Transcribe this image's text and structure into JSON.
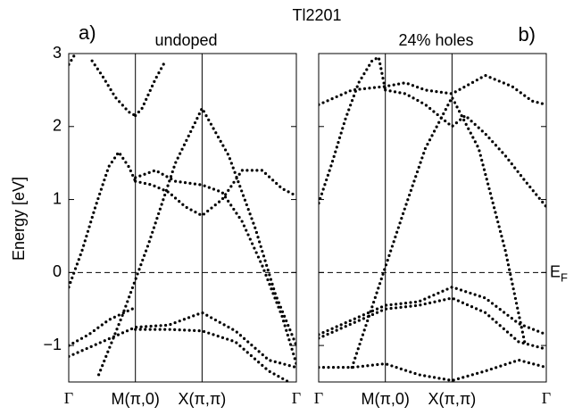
{
  "title": "Tl2201",
  "chart_data": [
    {
      "type": "line",
      "label": "a)",
      "title": "undoped",
      "ylabel": "Energy [eV]",
      "color": "#000000",
      "xlim": [
        0,
        3.414
      ],
      "ylim": [
        -1.5,
        3
      ],
      "xticks": [
        {
          "value": 0,
          "label": "Γ"
        },
        {
          "value": 1,
          "label": "M(π,0)"
        },
        {
          "value": 2,
          "label": "X(π,π)"
        },
        {
          "value": 3.414,
          "label": "Γ"
        }
      ],
      "yticks": [
        {
          "value": -1,
          "label": "−1"
        },
        0,
        1,
        2,
        3
      ],
      "ytick_labels": true,
      "xgrid": true,
      "fermi_level": 0,
      "series": [
        {
          "x": [
            0,
            0.2,
            0.4,
            0.6,
            0.75,
            0.9,
            1.0
          ],
          "values": [
            -0.2,
            0.3,
            0.9,
            1.45,
            1.65,
            1.45,
            1.25
          ]
        },
        {
          "x": [
            0,
            0.1
          ],
          "values": [
            2.85,
            3.0
          ]
        },
        {
          "x": [
            0.35,
            0.5,
            0.7,
            0.9,
            1.0
          ],
          "values": [
            2.9,
            2.7,
            2.4,
            2.2,
            2.15
          ]
        },
        {
          "x": [
            1.0,
            1.1,
            1.2,
            1.3,
            1.45
          ],
          "values": [
            2.15,
            2.25,
            2.45,
            2.65,
            2.9
          ]
        },
        {
          "x": [
            1.0,
            1.25,
            1.5,
            1.75,
            2.0,
            2.3,
            2.6,
            2.9,
            3.2,
            3.414
          ],
          "values": [
            1.25,
            1.2,
            1.1,
            0.9,
            0.78,
            1.0,
            1.4,
            1.4,
            1.15,
            1.05
          ]
        },
        {
          "x": [
            1.0,
            1.3,
            1.6,
            2.0,
            2.3,
            2.6,
            2.9,
            3.2,
            3.414
          ],
          "values": [
            1.3,
            1.4,
            1.25,
            1.2,
            1.1,
            0.7,
            0.1,
            -0.6,
            -1.25
          ]
        },
        {
          "x": [
            0.45,
            0.8,
            1.2,
            1.6,
            2.0,
            2.4,
            2.8,
            3.1,
            3.414
          ],
          "values": [
            -1.4,
            -0.6,
            0.4,
            1.5,
            2.25,
            1.6,
            0.6,
            -0.3,
            -1.0
          ]
        },
        {
          "x": [
            0,
            0.3,
            0.6,
            0.9,
            1.0
          ],
          "values": [
            -1.0,
            -0.85,
            -0.65,
            -0.52,
            -0.48
          ]
        },
        {
          "x": [
            0,
            0.5,
            1.0,
            1.5,
            2.0,
            2.5,
            3.0,
            3.414
          ],
          "values": [
            -1.15,
            -0.95,
            -0.75,
            -0.72,
            -0.55,
            -0.8,
            -1.2,
            -1.3
          ]
        },
        {
          "x": [
            1.0,
            1.5,
            2.0,
            2.5,
            3.0,
            3.3
          ],
          "values": [
            -0.78,
            -0.78,
            -0.8,
            -0.95,
            -1.35,
            -1.5
          ]
        }
      ]
    },
    {
      "type": "line",
      "label": "b)",
      "title": "24% holes",
      "color": "#000000",
      "fermi_label": {
        "main": "E",
        "sub": "F"
      },
      "xlim": [
        0,
        3.414
      ],
      "ylim": [
        -1.5,
        3
      ],
      "xticks": [
        {
          "value": 0,
          "label": "Γ"
        },
        {
          "value": 1,
          "label": "M(π,0)"
        },
        {
          "value": 2,
          "label": "X(π,π)"
        },
        {
          "value": 3.414,
          "label": "Γ"
        }
      ],
      "yticks": [
        -1,
        0,
        1,
        2,
        3
      ],
      "ytick_labels": false,
      "xgrid": true,
      "fermi_level": 0,
      "series": [
        {
          "x": [
            0,
            0.5,
            1.0,
            1.3,
            1.6,
            2.0,
            2.5,
            2.9,
            3.2,
            3.414
          ],
          "values": [
            2.3,
            2.5,
            2.55,
            2.6,
            2.5,
            2.45,
            2.7,
            2.55,
            2.35,
            2.3
          ]
        },
        {
          "x": [
            0,
            0.2,
            0.4,
            0.6,
            0.8,
            0.9,
            1.0
          ],
          "values": [
            0.95,
            1.5,
            2.1,
            2.6,
            2.9,
            2.95,
            2.5
          ]
        },
        {
          "x": [
            1.0,
            1.3,
            1.6,
            2.0,
            2.2,
            2.5,
            2.8,
            3.1,
            3.414
          ],
          "values": [
            2.5,
            2.45,
            2.3,
            2.0,
            2.15,
            1.9,
            1.6,
            1.25,
            0.9
          ]
        },
        {
          "x": [
            0.5,
            0.9,
            1.3,
            1.6,
            2.0,
            2.4,
            2.8,
            3.1
          ],
          "values": [
            -1.3,
            -0.2,
            0.9,
            1.7,
            2.4,
            1.7,
            0.3,
            -1.0
          ]
        },
        {
          "x": [
            0,
            0.5,
            1.0,
            1.5,
            2.0,
            2.5,
            3.0,
            3.414
          ],
          "values": [
            -0.85,
            -0.65,
            -0.45,
            -0.4,
            -0.2,
            -0.35,
            -0.7,
            -0.85
          ]
        },
        {
          "x": [
            0,
            0.5,
            1.0,
            1.5,
            2.0,
            2.5,
            3.0,
            3.414
          ],
          "values": [
            -0.9,
            -0.7,
            -0.5,
            -0.45,
            -0.35,
            -0.55,
            -0.95,
            -1.05
          ]
        },
        {
          "x": [
            0,
            0.5,
            1.0,
            1.5,
            2.0,
            2.5,
            3.0,
            3.414
          ],
          "values": [
            -1.3,
            -1.3,
            -1.25,
            -1.4,
            -1.48,
            -1.35,
            -1.2,
            -1.3
          ]
        }
      ]
    }
  ]
}
